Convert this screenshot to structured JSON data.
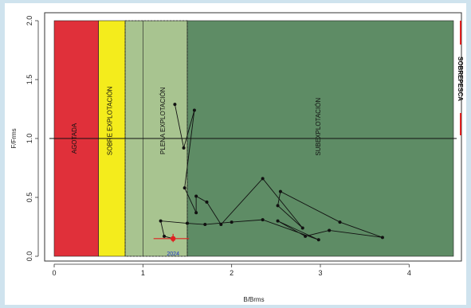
{
  "chart_data": {
    "type": "scatter",
    "xlabel": "B/Brms",
    "ylabel": "F/Frms",
    "xlim": [
      0,
      4.5
    ],
    "ylim": [
      0,
      2.0
    ],
    "xticks": [
      "0",
      "1",
      "2",
      "3",
      "4"
    ],
    "yticks": [
      "0.0",
      "0.5",
      "1.0",
      "1.5",
      "2.0"
    ],
    "reference_line_y": 1.0,
    "zones": [
      {
        "name": "AGOTADA",
        "x0": 0,
        "x1": 0.5,
        "color": "#e0303a"
      },
      {
        "name": "SOBRE EXPLOTACIÓN",
        "x0": 0.5,
        "x1": 0.8,
        "color": "#f4ec1c"
      },
      {
        "name": "",
        "x0": 0.8,
        "x1": 1.0,
        "color": "#a8c490"
      },
      {
        "name": "PLENA EXPLOTACIÓN",
        "x0": 1.0,
        "x1": 1.5,
        "color": "#a8c490"
      },
      {
        "name": "SUBEXPLOTACIÓN",
        "x0": 1.5,
        "x1": 4.5,
        "color": "#5e8c65"
      }
    ],
    "legend": {
      "label": "SOBREPESCA",
      "color": "#e02020",
      "position": "right"
    },
    "trajectory": [
      {
        "x": 1.36,
        "y": 1.29
      },
      {
        "x": 1.46,
        "y": 0.92
      },
      {
        "x": 1.58,
        "y": 1.24
      },
      {
        "x": 1.47,
        "y": 0.58
      },
      {
        "x": 1.6,
        "y": 0.37
      },
      {
        "x": 1.6,
        "y": 0.51
      },
      {
        "x": 1.72,
        "y": 0.46
      },
      {
        "x": 1.88,
        "y": 0.27
      },
      {
        "x": 2.35,
        "y": 0.66
      },
      {
        "x": 2.8,
        "y": 0.24
      },
      {
        "x": 2.52,
        "y": 0.43
      },
      {
        "x": 2.55,
        "y": 0.55
      },
      {
        "x": 3.22,
        "y": 0.29
      },
      {
        "x": 3.7,
        "y": 0.16
      },
      {
        "x": 3.1,
        "y": 0.22
      },
      {
        "x": 2.83,
        "y": 0.17
      },
      {
        "x": 2.52,
        "y": 0.3
      },
      {
        "x": 2.98,
        "y": 0.14
      },
      {
        "x": 2.35,
        "y": 0.31
      },
      {
        "x": 2.0,
        "y": 0.29
      },
      {
        "x": 1.7,
        "y": 0.27
      },
      {
        "x": 1.5,
        "y": 0.28
      },
      {
        "x": 1.2,
        "y": 0.3
      },
      {
        "x": 1.24,
        "y": 0.17
      },
      {
        "x": 1.34,
        "y": 0.15
      }
    ],
    "current_point": {
      "label": "2024",
      "x": 1.34,
      "y": 0.15,
      "x_err": [
        1.12,
        1.52
      ],
      "y_err": [
        0.12,
        0.19
      ],
      "color": "#e02020"
    }
  }
}
